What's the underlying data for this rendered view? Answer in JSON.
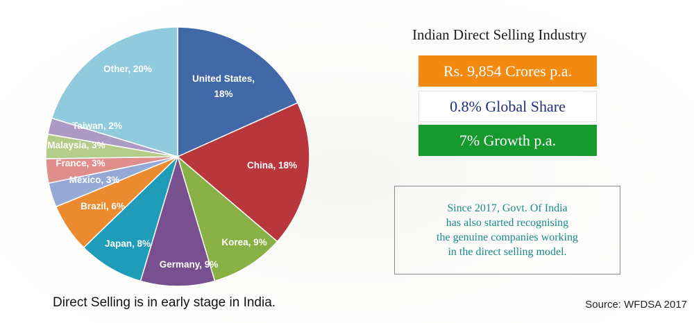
{
  "chart_data": {
    "type": "pie",
    "slices": [
      {
        "label": "United States, 18%",
        "value": 18,
        "color": "#4169a8"
      },
      {
        "label": "China, 18%",
        "value": 18,
        "color": "#b8363c"
      },
      {
        "label": "Korea, 9%",
        "value": 9,
        "color": "#88b044"
      },
      {
        "label": "Germany, 9%",
        "value": 9,
        "color": "#78508f"
      },
      {
        "label": "Japan, 8%",
        "value": 8,
        "color": "#1f9cb7"
      },
      {
        "label": "Brazil, 6%",
        "value": 6,
        "color": "#ec8a30"
      },
      {
        "label": "Mexico, 3%",
        "value": 3,
        "color": "#94a9d6"
      },
      {
        "label": "France, 3%",
        "value": 3,
        "color": "#df8e8c"
      },
      {
        "label": "Malaysia, 3%",
        "value": 3,
        "color": "#b3cc88"
      },
      {
        "label": "Taiwan, 2%",
        "value": 2,
        "color": "#ad9ac4"
      },
      {
        "label": "Other, 20%",
        "value": 20,
        "color": "#8fcadd"
      }
    ]
  },
  "caption": "Direct Selling is in early stage in India.",
  "panel": {
    "title": "Indian Direct Selling Industry",
    "stats": [
      {
        "text": "Rs. 9,854 Crores p.a.",
        "color": "#f28a12"
      },
      {
        "text": "0.8% Global Share",
        "color": "#ffffff"
      },
      {
        "text": "7% Growth p.a.",
        "color": "#169a2e"
      }
    ],
    "note_lines": [
      "Since 2017, Govt. Of India",
      "has also started recognising",
      "the genuine companies working",
      "in the direct selling model."
    ]
  },
  "source": "Source: WFDSA 2017"
}
